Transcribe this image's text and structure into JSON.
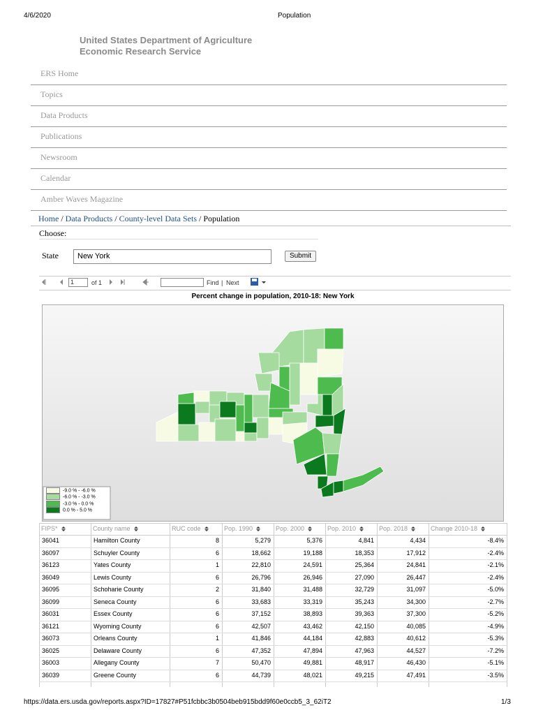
{
  "print_header": {
    "date": "4/6/2020",
    "title": "Population"
  },
  "org": {
    "line1": "United States Department of Agriculture",
    "line2": "Economic Research Service"
  },
  "nav": [
    "ERS Home",
    "Topics",
    "Data Products",
    "Publications",
    "Newsroom",
    "Calendar",
    "Amber Waves Magazine"
  ],
  "breadcrumb": {
    "items": [
      "Home",
      "Data Products",
      "County-level Data Sets",
      "Population"
    ],
    "separator": "/"
  },
  "form": {
    "choose": "Choose:",
    "state_label": "State",
    "state_value": "New York",
    "submit": "Submit"
  },
  "toolbar": {
    "page": "1",
    "of": "of 1",
    "find": "Find",
    "divider": "|",
    "next": "Next"
  },
  "map": {
    "title": "Percent change in population, 2010-18: New York",
    "legend": [
      "-9.0 % - -6.0 %",
      "-6.0 % - -3.0 %",
      "-3.0 % - 0.0 %",
      "0.0 % - 5.0 %"
    ]
  },
  "table": {
    "columns": [
      "FIPS*",
      "County name",
      "RUC code",
      "Pop. 1990",
      "Pop. 2000",
      "Pop. 2010",
      "Pop. 2018",
      "Change 2010-18"
    ],
    "rows": [
      [
        "36041",
        "Hamilton County",
        "8",
        "5,279",
        "5,376",
        "4,841",
        "4,434",
        "-8.4%"
      ],
      [
        "36097",
        "Schuyler County",
        "6",
        "18,662",
        "19,188",
        "18,353",
        "17,912",
        "-2.4%"
      ],
      [
        "36123",
        "Yates County",
        "1",
        "22,810",
        "24,591",
        "25,364",
        "24,841",
        "-2.1%"
      ],
      [
        "36049",
        "Lewis County",
        "6",
        "26,796",
        "26,946",
        "27,090",
        "26,447",
        "-2.4%"
      ],
      [
        "36095",
        "Schoharie County",
        "2",
        "31,840",
        "31,488",
        "32,729",
        "31,097",
        "-5.0%"
      ],
      [
        "36099",
        "Seneca County",
        "6",
        "33,683",
        "33,319",
        "35,243",
        "34,300",
        "-2.7%"
      ],
      [
        "36031",
        "Essex County",
        "6",
        "37,152",
        "38,893",
        "39,363",
        "37,300",
        "-5.2%"
      ],
      [
        "36121",
        "Wyoming County",
        "6",
        "42,507",
        "43,462",
        "42,150",
        "40,085",
        "-4.9%"
      ],
      [
        "36073",
        "Orleans County",
        "1",
        "41,846",
        "44,184",
        "42,883",
        "40,612",
        "-5.3%"
      ],
      [
        "36025",
        "Delaware County",
        "6",
        "47,352",
        "47,894",
        "47,963",
        "44,527",
        "-7.2%"
      ],
      [
        "36003",
        "Allegany County",
        "7",
        "50,470",
        "49,881",
        "48,917",
        "46,430",
        "-5.1%"
      ],
      [
        "36039",
        "Greene County",
        "6",
        "44,739",
        "48,021",
        "49,215",
        "47,491",
        "-3.5%"
      ]
    ]
  },
  "print_footer": {
    "url": "https://data.ers.usda.gov/reports.aspx?ID=17827#P51fcbbc3b0504beb915bdd9f60e0ccb5_3_62iT2",
    "page": "1/3"
  }
}
